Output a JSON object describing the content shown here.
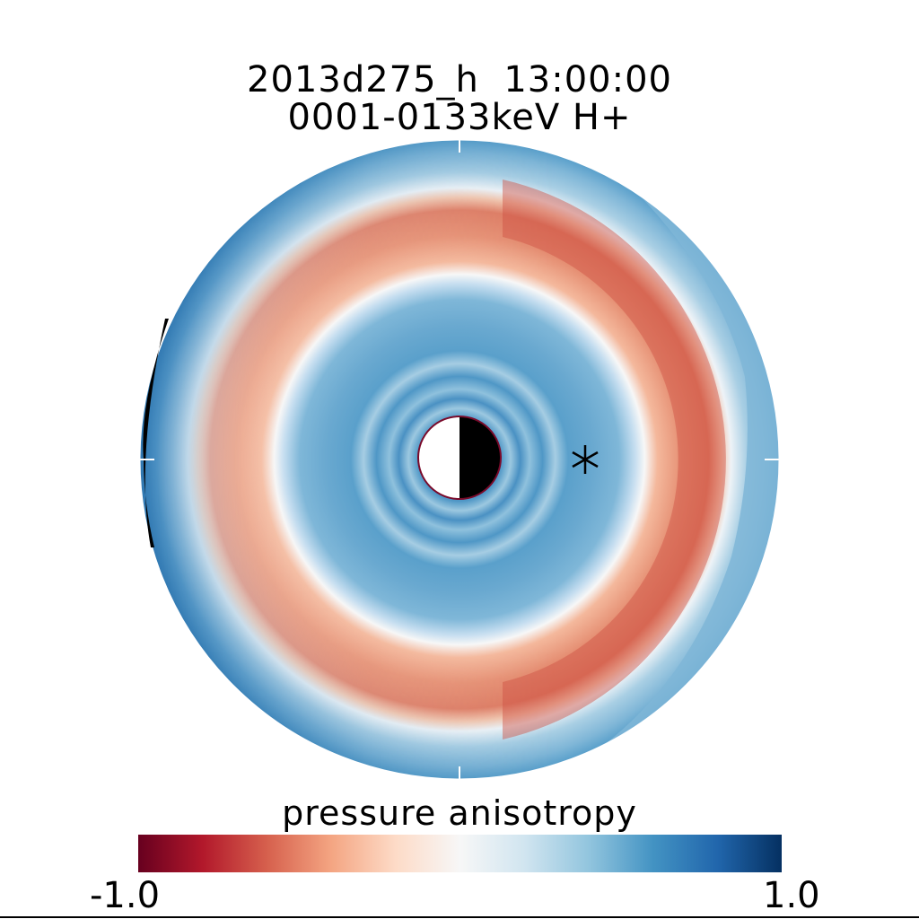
{
  "title": {
    "line1": "2013d275_h  13:00:00",
    "line2": "0001-0133keV H+"
  },
  "colorbar": {
    "label": "pressure anisotropy",
    "min_label": "-1.0",
    "max_label": "1.0",
    "min": -1.0,
    "max": 1.0,
    "colors": [
      "#67001f",
      "#b2182b",
      "#d6604d",
      "#f4a582",
      "#fddbc7",
      "#f7f7f7",
      "#d1e5f0",
      "#92c5de",
      "#4393c3",
      "#2166ac",
      "#053061"
    ]
  },
  "chart_data": {
    "type": "heatmap",
    "projection": "polar",
    "title": "2013d275_h  13:00:00",
    "subtitle": "0001-0133keV H+",
    "colorbar_label": "pressure anisotropy",
    "value_range": [
      -1.0,
      1.0
    ],
    "earth_marker": "half-lit circle at center",
    "marker": "asterisk",
    "grid": false
  }
}
